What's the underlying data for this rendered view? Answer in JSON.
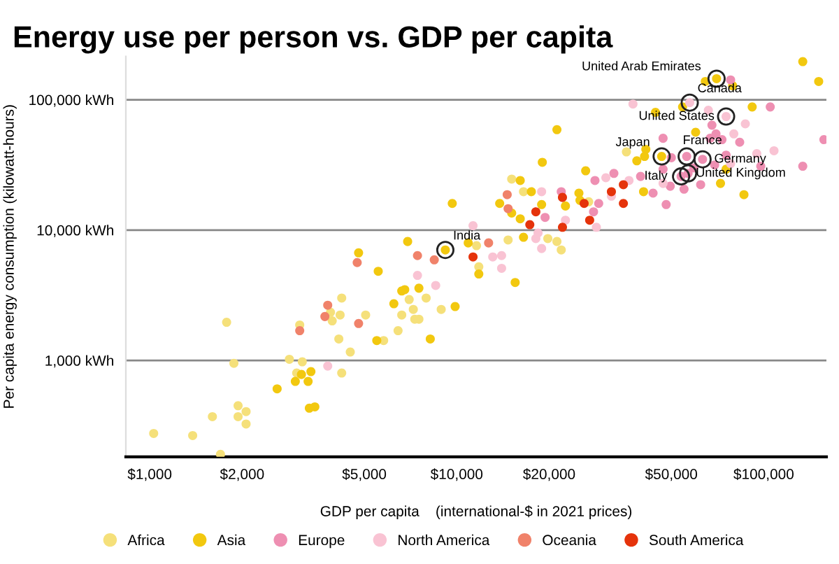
{
  "chart_data": {
    "type": "scatter",
    "title": "Energy use per person vs. GDP per capita",
    "xlabel": "GDP per capita    (international-$ in 2021 prices)",
    "ylabel": "Per capita energy consumption (kilowatt-hours)",
    "log": "xy",
    "grid": "y",
    "legend": "bottom",
    "marker": "circle",
    "xlim": [
      836,
      160000
    ],
    "ylim": [
      182,
      215000
    ],
    "xticks": [
      {
        "value": 1000,
        "label": "$1,000"
      },
      {
        "value": 2000,
        "label": "$2,000"
      },
      {
        "value": 5000,
        "label": "$5,000"
      },
      {
        "value": 10000,
        "label": "$10,000"
      },
      {
        "value": 20000,
        "label": "$20,000"
      },
      {
        "value": 50000,
        "label": "$50,000"
      },
      {
        "value": 100000,
        "label": "$100,000"
      }
    ],
    "yticks": [
      {
        "value": 1000,
        "label": "1,000 kWh"
      },
      {
        "value": 10000,
        "label": "10,000 kWh"
      },
      {
        "value": 100000,
        "label": "100,000 kWh"
      }
    ],
    "series": [
      {
        "name": "Africa",
        "color": "#f5e07a",
        "x": [
          1030,
          1380,
          1700,
          1600,
          1780,
          1880,
          1940,
          1940,
          2060,
          2060,
          2850,
          3010,
          3140,
          3080,
          3880,
          3930,
          4170,
          4220,
          4130,
          4500,
          4220,
          5050,
          5780,
          6440,
          6620,
          7000,
          7220,
          7300,
          7530,
          7950,
          8900,
          11600,
          11800,
          14700,
          19800,
          21200,
          21900,
          15100,
          16500,
          26900,
          35700
        ],
        "values": [
          275,
          265,
          190,
          370,
          1960,
          950,
          449,
          370,
          405,
          325,
          1020,
          800,
          975,
          1870,
          2340,
          2010,
          2230,
          3010,
          1460,
          1160,
          800,
          2230,
          1420,
          1690,
          2230,
          2930,
          2460,
          2070,
          2070,
          3010,
          2460,
          7590,
          5220,
          8390,
          8600,
          8170,
          7040,
          24600,
          19700,
          16500,
          39800
        ]
      },
      {
        "name": "Asia",
        "color": "#f2c80f",
        "x": [
          2600,
          2980,
          3120,
          3280,
          3350,
          3310,
          3450,
          4790,
          5550,
          5490,
          6240,
          6620,
          6770,
          6920,
          7530,
          8200,
          9180,
          9670,
          9880,
          10900,
          11800,
          15500,
          16500,
          13800,
          15100,
          16100,
          16100,
          17500,
          18900,
          19000,
          21200,
          22600,
          25000,
          25200,
          26300,
          38600,
          40600,
          40900,
          41300,
          46500,
          44400,
          60000,
          54400,
          64500,
          79200,
          70200,
          72300,
          75400,
          91700,
          86200,
          134000,
          151000
        ],
        "values": [
          605,
          690,
          780,
          690,
          820,
          430,
          440,
          6690,
          4830,
          1420,
          2720,
          3410,
          3490,
          8170,
          3580,
          1460,
          7040,
          16000,
          2590,
          7970,
          4600,
          3960,
          8810,
          16000,
          13500,
          24000,
          12200,
          19700,
          15700,
          33100,
          58900,
          15300,
          19200,
          16900,
          28500,
          34000,
          19700,
          36700,
          41600,
          36700,
          80000,
          56300,
          88000,
          138000,
          128000,
          145000,
          22800,
          29300,
          88000,
          18700,
          196000,
          138000
        ]
      },
      {
        "name": "Europe",
        "color": "#ee8fb2",
        "x": [
          19400,
          21900,
          27900,
          29000,
          28200,
          32500,
          39700,
          43600,
          47000,
          47000,
          48100,
          49600,
          50000,
          55000,
          53800,
          56700,
          56100,
          63200,
          78000,
          67800,
          69900,
          66900,
          73100,
          69200,
          62300,
          59200,
          75400,
          83500,
          97800,
          105000,
          134000,
          157000
        ],
        "values": [
          12500,
          19700,
          13800,
          16000,
          24000,
          27200,
          25800,
          19200,
          50600,
          29300,
          15700,
          21700,
          35900,
          20600,
          25800,
          27200,
          36700,
          34900,
          142000,
          63800,
          54700,
          50600,
          49400,
          31600,
          22300,
          30000,
          37600,
          47200,
          30900,
          88000,
          30900,
          49400
        ]
      },
      {
        "name": "North America",
        "color": "#f9c3d3",
        "x": [
          3800,
          7450,
          8540,
          11300,
          13100,
          14000,
          14000,
          18100,
          18400,
          18900,
          18900,
          22600,
          28500,
          30600,
          31900,
          36400,
          37500,
          47000,
          57400,
          75400,
          66000,
          79900,
          78000,
          87100,
          94900,
          108000
        ],
        "values": [
          905,
          4490,
          3760,
          10800,
          6220,
          6370,
          5090,
          8600,
          9490,
          7220,
          19700,
          11900,
          10500,
          25200,
          18200,
          24000,
          92700,
          22800,
          95000,
          74300,
          83000,
          54700,
          32300,
          65300,
          38600,
          40600
        ]
      },
      {
        "name": "Oceania",
        "color": "#f0826a",
        "x": [
          3080,
          3720,
          3800,
          4790,
          4740,
          7450,
          8450,
          12700,
          14600,
          14700
        ],
        "values": [
          1690,
          2170,
          2650,
          1920,
          5630,
          6370,
          5910,
          7970,
          18700,
          14600
        ]
      },
      {
        "name": "South America",
        "color": "#e5330b",
        "x": [
          11300,
          17300,
          18100,
          22100,
          22100,
          26000,
          27100,
          31900,
          34900,
          34900
        ],
        "values": [
          6220,
          11000,
          13800,
          17800,
          10500,
          16000,
          11900,
          19700,
          22300,
          16000
        ]
      }
    ],
    "annotations": [
      {
        "text": "United Arab Emirates",
        "x": 70200,
        "y": 145000
      },
      {
        "text": "Canada",
        "x": 57400,
        "y": 95000
      },
      {
        "text": "United States",
        "x": 75400,
        "y": 74300
      },
      {
        "text": "Japan",
        "x": 46500,
        "y": 36700
      },
      {
        "text": "France",
        "x": 56100,
        "y": 36700
      },
      {
        "text": "Germany",
        "x": 63200,
        "y": 34900
      },
      {
        "text": "Italy",
        "x": 53800,
        "y": 25800
      },
      {
        "text": "United Kingdom",
        "x": 56700,
        "y": 27200
      },
      {
        "text": "India",
        "x": 9180,
        "y": 7040
      }
    ]
  }
}
